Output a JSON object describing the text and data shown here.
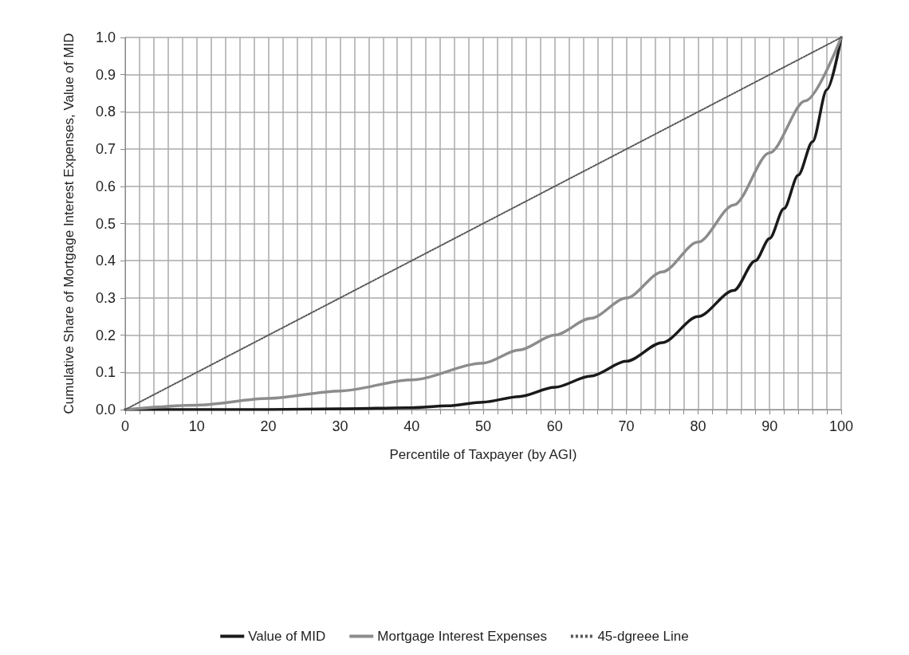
{
  "chart_data": {
    "type": "line",
    "xlabel": "Percentile of Taxpayer (by AGI)",
    "ylabel": "Cumulative Share of Mortgage Interest Expenses, Value of MID",
    "xlim": [
      0,
      100
    ],
    "ylim": [
      0,
      1
    ],
    "xticks": [
      0,
      {
        "value": 2,
        "label": null
      },
      {
        "value": 4,
        "label": null
      },
      {
        "value": 6,
        "label": null
      },
      {
        "value": 8,
        "label": null
      },
      10,
      {
        "value": 12,
        "label": null
      },
      {
        "value": 14,
        "label": null
      },
      {
        "value": 16,
        "label": null
      },
      {
        "value": 18,
        "label": null
      },
      20,
      {
        "value": 22,
        "label": null
      },
      {
        "value": 24,
        "label": null
      },
      {
        "value": 26,
        "label": null
      },
      {
        "value": 28,
        "label": null
      },
      30,
      {
        "value": 32,
        "label": null
      },
      {
        "value": 34,
        "label": null
      },
      {
        "value": 36,
        "label": null
      },
      {
        "value": 38,
        "label": null
      },
      40,
      {
        "value": 42,
        "label": null
      },
      {
        "value": 44,
        "label": null
      },
      {
        "value": 46,
        "label": null
      },
      {
        "value": 48,
        "label": null
      },
      50,
      {
        "value": 52,
        "label": null
      },
      {
        "value": 54,
        "label": null
      },
      {
        "value": 56,
        "label": null
      },
      {
        "value": 58,
        "label": null
      },
      60,
      {
        "value": 62,
        "label": null
      },
      {
        "value": 64,
        "label": null
      },
      {
        "value": 66,
        "label": null
      },
      {
        "value": 68,
        "label": null
      },
      70,
      {
        "value": 72,
        "label": null
      },
      {
        "value": 74,
        "label": null
      },
      {
        "value": 76,
        "label": null
      },
      {
        "value": 78,
        "label": null
      },
      80,
      {
        "value": 82,
        "label": null
      },
      {
        "value": 84,
        "label": null
      },
      {
        "value": 86,
        "label": null
      },
      {
        "value": 88,
        "label": null
      },
      90,
      {
        "value": 92,
        "label": null
      },
      {
        "value": 94,
        "label": null
      },
      {
        "value": 96,
        "label": null
      },
      {
        "value": 98,
        "label": null
      },
      100
    ],
    "yticks": [
      {
        "value": 0,
        "label": "0.0"
      },
      0.1,
      0.2,
      0.3,
      0.4,
      0.5,
      0.6,
      0.7,
      0.8,
      0.9,
      {
        "value": 1,
        "label": "1.0"
      }
    ],
    "grid": true,
    "legend": "bottom",
    "marker": "none",
    "series": [
      {
        "name": "Value of MID",
        "color": "#1a1a1a",
        "line_style": "solid",
        "x": [
          0,
          10,
          20,
          30,
          40,
          45,
          50,
          55,
          60,
          65,
          70,
          75,
          80,
          85,
          88,
          90,
          92,
          94,
          96,
          98,
          100
        ],
        "values": [
          0,
          0,
          0,
          0.002,
          0.005,
          0.01,
          0.02,
          0.035,
          0.06,
          0.09,
          0.13,
          0.18,
          0.25,
          0.32,
          0.4,
          0.46,
          0.54,
          0.63,
          0.72,
          0.86,
          1
        ]
      },
      {
        "name": "Mortgage Interest Expenses",
        "color": "#8c8c8c",
        "line_style": "solid",
        "x": [
          0,
          10,
          20,
          30,
          40,
          50,
          55,
          60,
          65,
          70,
          75,
          80,
          85,
          90,
          95,
          100
        ],
        "values": [
          0,
          0.012,
          0.03,
          0.05,
          0.08,
          0.125,
          0.16,
          0.2,
          0.245,
          0.3,
          0.37,
          0.45,
          0.55,
          0.69,
          0.83,
          1
        ]
      },
      {
        "name": "45-dgreee Line",
        "color": "#555555",
        "line_style": "dotted",
        "x": [
          0,
          100
        ],
        "values": [
          0,
          1
        ]
      }
    ]
  }
}
